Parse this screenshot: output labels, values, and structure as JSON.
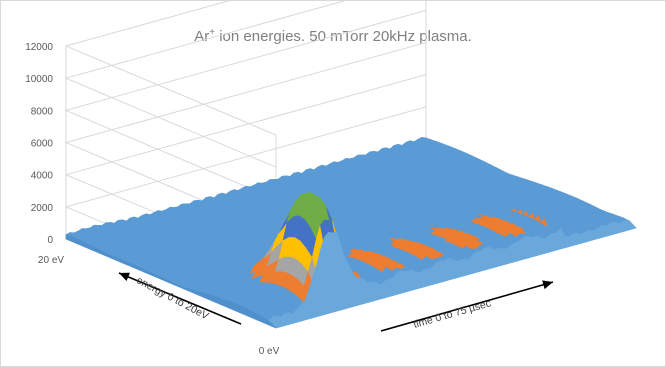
{
  "chart_data": {
    "type": "surface",
    "title_main": "Ar",
    "title_sup": "+",
    "title_rest": " ion energies. 50 mTorr 20kHz plasma.",
    "z_ticks": [
      "0",
      "2000",
      "4000",
      "6000",
      "8000",
      "10000",
      "12000"
    ],
    "z_range": [
      0,
      12000
    ],
    "energy_tick_high": "20 eV",
    "energy_tick_low": "0 eV",
    "energy_axis_label": "energy 0 to 20eV",
    "time_axis_label": "time 0 to 75 µsec",
    "energy_range_eV": [
      0,
      20
    ],
    "time_range_usec": [
      0,
      75
    ],
    "peak_value": 6300,
    "band_colors": [
      "#5b9bd5",
      "#ed7d31",
      "#a5a5a5",
      "#ffc000",
      "#4472c4",
      "#70ad47"
    ],
    "band_step": 1000,
    "grid": true
  }
}
